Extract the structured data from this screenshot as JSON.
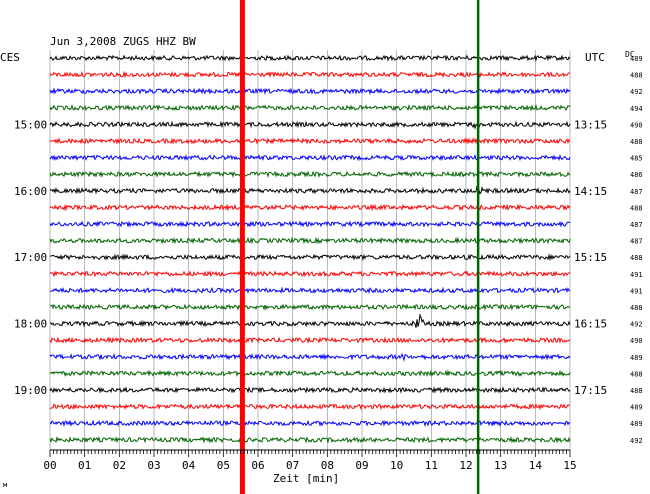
{
  "chart_data": {
    "type": "line",
    "title": "Jun 3,2008   ZUGS HHZ BW",
    "left_timezone": "CES",
    "right_timezone": "UTC",
    "dc_label": "DC",
    "xlabel": "Zeit [min]",
    "x_ticks": [
      "00",
      "01",
      "02",
      "03",
      "04",
      "05",
      "06",
      "07",
      "08",
      "09",
      "10",
      "11",
      "12",
      "13",
      "14",
      "15"
    ],
    "xlim": [
      0,
      15
    ],
    "trace_count": 24,
    "trace_colors": [
      "#000000",
      "#ff0000",
      "#0000ff",
      "#006400"
    ],
    "left_hour_labels": [
      {
        "trace": 4,
        "text": "15:00"
      },
      {
        "trace": 8,
        "text": "16:00"
      },
      {
        "trace": 12,
        "text": "17:00"
      },
      {
        "trace": 16,
        "text": "18:00"
      },
      {
        "trace": 20,
        "text": "19:00"
      }
    ],
    "right_hour_labels": [
      {
        "trace": 4,
        "text": "13:15"
      },
      {
        "trace": 8,
        "text": "14:15"
      },
      {
        "trace": 12,
        "text": "15:15"
      },
      {
        "trace": 16,
        "text": "16:15"
      },
      {
        "trace": 20,
        "text": "17:15"
      }
    ],
    "dc_values": [
      "489",
      "488",
      "492",
      "494",
      "490",
      "488",
      "485",
      "486",
      "487",
      "488",
      "487",
      "487",
      "488",
      "491",
      "491",
      "488",
      "492",
      "490",
      "489",
      "488",
      "488",
      "489",
      "489",
      "492"
    ],
    "markers": [
      {
        "minute": 5.55,
        "color": "#ff0000"
      },
      {
        "minute": 12.35,
        "color": "#006400"
      }
    ],
    "events": [
      {
        "trace": 16,
        "minute": 10.65,
        "amplitude": 11
      },
      {
        "trace": 18,
        "minute": 10.2,
        "amplitude": 4
      },
      {
        "trace": 8,
        "minute": 12.35,
        "amplitude": 6
      },
      {
        "trace": 4,
        "minute": 12.35,
        "amplitude": 5
      }
    ],
    "footnote": "м"
  }
}
